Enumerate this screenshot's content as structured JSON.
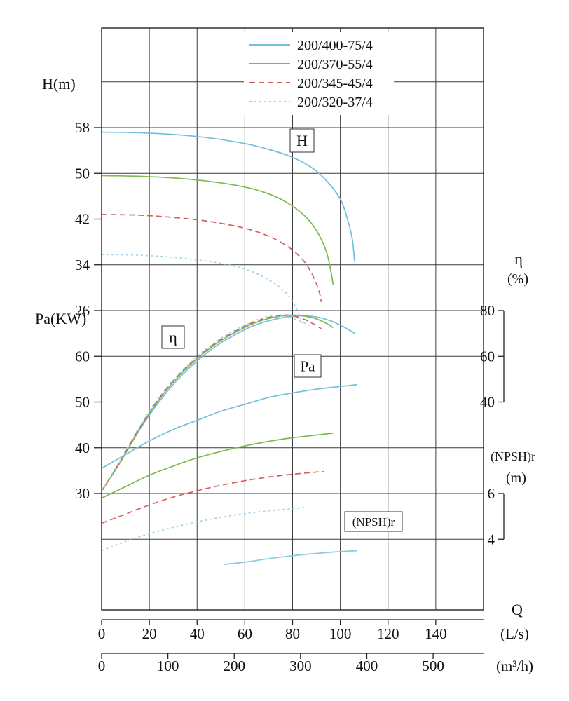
{
  "chart_data": {
    "type": "line",
    "title": "",
    "legend": {
      "position": "top-center-inside",
      "items": [
        {
          "label": "200/400-75/4",
          "color": "#74bedc",
          "dash": "solid"
        },
        {
          "label": "200/370-55/4",
          "color": "#7cba50",
          "dash": "solid"
        },
        {
          "label": "200/345-45/4",
          "color": "#d55f5f",
          "dash": "dashed"
        },
        {
          "label": "200/320-37/4",
          "color": "#a0d3e8",
          "dash": "dotted"
        }
      ]
    },
    "axes": {
      "x": {
        "label": "Q",
        "primary_unit": "(L/s)",
        "primary_ticks": [
          0,
          20,
          40,
          60,
          80,
          100,
          120,
          140
        ],
        "secondary_unit": "(m³/h)",
        "secondary_ticks": [
          0,
          100,
          200,
          300,
          400,
          500
        ],
        "range_Ls": [
          0,
          160
        ],
        "grid": true
      },
      "H": {
        "label": "H(m)",
        "ticks": [
          58,
          50,
          42,
          34,
          26
        ]
      },
      "Pa": {
        "label": "Pa(KW)",
        "ticks": [
          60,
          50,
          40,
          30
        ]
      },
      "eta": {
        "label": "η",
        "unit": "(%)",
        "ticks": [
          80,
          60,
          40
        ]
      },
      "npsh": {
        "label": "(NPSH)r",
        "unit": "(m)",
        "ticks": [
          6,
          4
        ]
      }
    },
    "annotations": [
      {
        "key": "H",
        "text": "H"
      },
      {
        "key": "eta",
        "text": "η"
      },
      {
        "key": "Pa",
        "text": "Pa"
      },
      {
        "key": "npsh",
        "text": "(NPSH)r"
      }
    ],
    "series": {
      "H": [
        {
          "name": "200/400-75/4",
          "color": "#74bedc",
          "dash": "solid",
          "points": [
            [
              0,
              57.2
            ],
            [
              15,
              57.1
            ],
            [
              30,
              56.8
            ],
            [
              45,
              56.2
            ],
            [
              60,
              55.2
            ],
            [
              70,
              54.2
            ],
            [
              80,
              52.8
            ],
            [
              88,
              51.0
            ],
            [
              94,
              48.8
            ],
            [
              100,
              45.5
            ],
            [
              103,
              42.0
            ],
            [
              105,
              38.5
            ],
            [
              106,
              34.5
            ]
          ]
        },
        {
          "name": "200/370-55/4",
          "color": "#7cba50",
          "dash": "solid",
          "points": [
            [
              0,
              49.6
            ],
            [
              15,
              49.5
            ],
            [
              30,
              49.2
            ],
            [
              45,
              48.6
            ],
            [
              60,
              47.6
            ],
            [
              70,
              46.4
            ],
            [
              78,
              44.8
            ],
            [
              85,
              42.6
            ],
            [
              90,
              40.0
            ],
            [
              94,
              36.5
            ],
            [
              96,
              33.0
            ],
            [
              97,
              30.5
            ]
          ]
        },
        {
          "name": "200/345-45/4",
          "color": "#d55f5f",
          "dash": "dashed",
          "points": [
            [
              0,
              42.8
            ],
            [
              15,
              42.7
            ],
            [
              30,
              42.3
            ],
            [
              45,
              41.6
            ],
            [
              60,
              40.4
            ],
            [
              70,
              39.0
            ],
            [
              78,
              37.2
            ],
            [
              84,
              35.0
            ],
            [
              88,
              32.5
            ],
            [
              91,
              29.5
            ],
            [
              92,
              27.5
            ]
          ]
        },
        {
          "name": "200/320-37/4",
          "color": "#a0d3e8",
          "dash": "dotted",
          "points": [
            [
              0,
              35.8
            ],
            [
              15,
              35.7
            ],
            [
              30,
              35.3
            ],
            [
              45,
              34.6
            ],
            [
              55,
              33.8
            ],
            [
              63,
              32.8
            ],
            [
              70,
              31.4
            ],
            [
              76,
              29.6
            ],
            [
              80,
              27.6
            ],
            [
              83,
              25.0
            ],
            [
              84,
              23.8
            ]
          ]
        }
      ],
      "eta": [
        {
          "name": "200/400-75/4",
          "color": "#74bedc",
          "dash": "solid",
          "points": [
            [
              0,
              1
            ],
            [
              8,
              14
            ],
            [
              16,
              28
            ],
            [
              24,
              40
            ],
            [
              32,
              50
            ],
            [
              40,
              58
            ],
            [
              48,
              64.5
            ],
            [
              56,
              69.5
            ],
            [
              64,
              73.5
            ],
            [
              72,
              76
            ],
            [
              80,
              77.5
            ],
            [
              88,
              77.5
            ],
            [
              96,
              75.5
            ],
            [
              102,
              72.5
            ],
            [
              106,
              70
            ]
          ]
        },
        {
          "name": "200/370-55/4",
          "color": "#7cba50",
          "dash": "solid",
          "points": [
            [
              0,
              1
            ],
            [
              8,
              14
            ],
            [
              16,
              28.5
            ],
            [
              24,
              41
            ],
            [
              32,
              51
            ],
            [
              40,
              59
            ],
            [
              48,
              65.5
            ],
            [
              56,
              70.5
            ],
            [
              64,
              74.5
            ],
            [
              72,
              77
            ],
            [
              80,
              78
            ],
            [
              88,
              77
            ],
            [
              94,
              74.5
            ],
            [
              97,
              72.5
            ]
          ]
        },
        {
          "name": "200/345-45/4",
          "color": "#d55f5f",
          "dash": "dashed",
          "points": [
            [
              0,
              1
            ],
            [
              8,
              14.5
            ],
            [
              16,
              29
            ],
            [
              24,
              41.5
            ],
            [
              32,
              51.5
            ],
            [
              40,
              59.5
            ],
            [
              48,
              66
            ],
            [
              56,
              71
            ],
            [
              64,
              75
            ],
            [
              72,
              77.5
            ],
            [
              78,
              78
            ],
            [
              84,
              76.5
            ],
            [
              89,
              74
            ],
            [
              92,
              72
            ]
          ]
        },
        {
          "name": "200/320-37/4",
          "color": "#a0d3e8",
          "dash": "dotted",
          "points": [
            [
              0,
              1
            ],
            [
              8,
              15
            ],
            [
              16,
              29.5
            ],
            [
              24,
              42
            ],
            [
              32,
              52
            ],
            [
              40,
              60
            ],
            [
              48,
              66.5
            ],
            [
              56,
              71.5
            ],
            [
              64,
              75.5
            ],
            [
              70,
              77.5
            ],
            [
              76,
              77.5
            ],
            [
              80,
              76.5
            ],
            [
              84,
              75
            ],
            [
              87,
              73.5
            ]
          ]
        }
      ],
      "Pa": [
        {
          "name": "200/400-75/4",
          "color": "#74bedc",
          "dash": "solid",
          "points": [
            [
              0,
              35.5
            ],
            [
              10,
              38.5
            ],
            [
              20,
              41.5
            ],
            [
              30,
              44
            ],
            [
              40,
              46
            ],
            [
              50,
              48
            ],
            [
              60,
              49.5
            ],
            [
              70,
              51
            ],
            [
              80,
              52
            ],
            [
              90,
              52.8
            ],
            [
              100,
              53.4
            ],
            [
              107,
              53.8
            ]
          ]
        },
        {
          "name": "200/370-55/4",
          "color": "#7cba50",
          "dash": "solid",
          "points": [
            [
              0,
              29
            ],
            [
              10,
              31.5
            ],
            [
              20,
              34
            ],
            [
              30,
              36
            ],
            [
              40,
              37.8
            ],
            [
              50,
              39.2
            ],
            [
              60,
              40.4
            ],
            [
              70,
              41.4
            ],
            [
              80,
              42.2
            ],
            [
              90,
              42.8
            ],
            [
              97,
              43.2
            ]
          ]
        },
        {
          "name": "200/345-45/4",
          "color": "#d55f5f",
          "dash": "dashed",
          "points": [
            [
              0,
              23.5
            ],
            [
              10,
              25.5
            ],
            [
              20,
              27.5
            ],
            [
              30,
              29.2
            ],
            [
              40,
              30.6
            ],
            [
              50,
              31.8
            ],
            [
              60,
              32.8
            ],
            [
              70,
              33.6
            ],
            [
              80,
              34.2
            ],
            [
              88,
              34.6
            ],
            [
              93,
              34.8
            ]
          ]
        },
        {
          "name": "200/320-37/4",
          "color": "#a0d3e8",
          "dash": "dotted",
          "points": [
            [
              0,
              17.5
            ],
            [
              10,
              19.5
            ],
            [
              20,
              21.2
            ],
            [
              30,
              22.6
            ],
            [
              40,
              23.8
            ],
            [
              50,
              24.8
            ],
            [
              60,
              25.6
            ],
            [
              70,
              26.2
            ],
            [
              80,
              26.7
            ],
            [
              86,
              27
            ]
          ]
        }
      ],
      "npsh": [
        {
          "name": "(NPSH)r",
          "color": "#8cc8e0",
          "dash": "solid",
          "points": [
            [
              51,
              2.9
            ],
            [
              60,
              3.0
            ],
            [
              70,
              3.15
            ],
            [
              80,
              3.28
            ],
            [
              90,
              3.38
            ],
            [
              100,
              3.46
            ],
            [
              107,
              3.5
            ]
          ]
        }
      ]
    }
  }
}
